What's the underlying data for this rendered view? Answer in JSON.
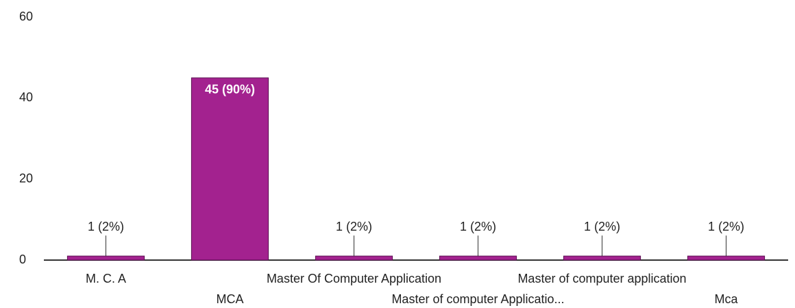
{
  "chart_data": {
    "type": "bar",
    "categories": [
      "M. C. A",
      "MCA",
      "Master Of Computer Application",
      "Master of computer Applicatio...",
      "Master of computer application",
      "Mca"
    ],
    "values": [
      1,
      45,
      1,
      1,
      1,
      1
    ],
    "value_labels": [
      "1 (2%)",
      "45 (90%)",
      "1 (2%)",
      "1 (2%)",
      "1 (2%)",
      "1 (2%)"
    ],
    "color": "#a3228f",
    "ylim": [
      0,
      60
    ],
    "yticks": [
      0,
      20,
      40,
      60
    ],
    "grid": false
  }
}
